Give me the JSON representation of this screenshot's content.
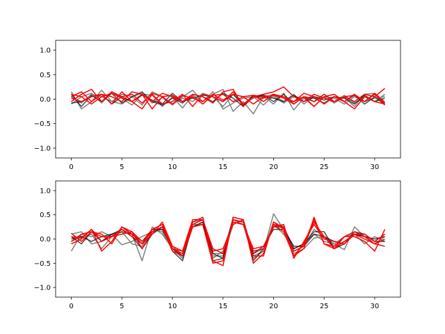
{
  "chart_data": [
    {
      "type": "line",
      "xlim": [
        -1.55,
        32.55
      ],
      "ylim": [
        -1.2,
        1.2
      ],
      "xticks": [
        0,
        5,
        10,
        15,
        20,
        25,
        30
      ],
      "yticks": [
        -1.0,
        -0.5,
        0.0,
        0.5,
        1.0
      ],
      "ytick_labels": [
        "−1.0",
        "−0.5",
        "0.0",
        "0.5",
        "1.0"
      ],
      "grid": false,
      "series": [
        {
          "color": "#808080",
          "values": [
            0.15,
            -0.2,
            -0.05,
            0.18,
            -0.05,
            -0.1,
            0.05,
            0.12,
            -0.08,
            0.03,
            -0.12,
            0.05,
            0.18,
            -0.05,
            0.1,
            0.2,
            -0.25,
            -0.05,
            -0.3,
            0.05,
            -0.1,
            0.12,
            -0.22,
            0.02,
            -0.15,
            0.05,
            -0.08,
            0.04,
            -0.15,
            0.1,
            0.12,
            -0.05
          ]
        },
        {
          "color": "#808080",
          "values": [
            -0.1,
            0.05,
            0.12,
            -0.08,
            0.15,
            0.02,
            -0.12,
            0.1,
            0.08,
            -0.15,
            0.05,
            -0.18,
            0.08,
            -0.05,
            0.15,
            -0.2,
            -0.08,
            0.02,
            0.05,
            -0.12,
            0.08,
            -0.05,
            0.1,
            -0.1,
            0.05,
            0.02,
            -0.05,
            0.08,
            -0.08,
            0.05,
            -0.05,
            0.1
          ]
        },
        {
          "color": "#808080",
          "values": [
            0.05,
            -0.08,
            0.1,
            0.05,
            -0.05,
            0.1,
            0.05,
            -0.12,
            0.15,
            0.05,
            -0.1,
            0.02,
            -0.05,
            0.12,
            0.05,
            -0.15,
            0.1,
            -0.1,
            0.02,
            0.08,
            0.05,
            -0.08,
            0.05,
            0.02,
            -0.05,
            0.05,
            0.02,
            -0.1,
            0.05,
            -0.05,
            0.02,
            0.05
          ]
        },
        {
          "color": "#000000",
          "opacity": 0.7,
          "values": [
            0.1,
            -0.15,
            0.08,
            -0.05,
            0.12,
            -0.08,
            0.05,
            0.15,
            -0.05,
            -0.12,
            0.02,
            -0.08,
            0.1,
            0.05,
            -0.05,
            0.12,
            0.02,
            -0.15,
            0.05,
            0.08,
            -0.05,
            0.1,
            -0.1,
            0.05,
            0.02,
            -0.08,
            0.05,
            -0.05,
            0.08,
            -0.1,
            0.05,
            -0.12
          ]
        },
        {
          "color": "#000000",
          "opacity": 0.7,
          "values": [
            -0.08,
            -0.05,
            0.05,
            0.1,
            -0.1,
            0.05,
            -0.05,
            0.08,
            -0.02,
            -0.1,
            0.12,
            -0.05,
            0.02,
            0.08,
            0.05,
            -0.05,
            0.1,
            -0.12,
            0.08,
            0.05,
            0.02,
            -0.05,
            0.08,
            -0.05,
            0.05,
            -0.02,
            0.05,
            0.02,
            -0.1,
            0.08,
            -0.05,
            0.02
          ]
        },
        {
          "color": "#ff0000",
          "values": [
            0.05,
            0.15,
            -0.05,
            0.1,
            0.05,
            -0.05,
            0.15,
            0.1,
            -0.05,
            0.12,
            0.05,
            -0.05,
            0.1,
            0.05,
            -0.08,
            0.15,
            0.2,
            -0.15,
            0.05,
            0.1,
            0.15,
            0.25,
            0.05,
            -0.05,
            0.1,
            0.02,
            -0.05,
            0.05,
            -0.05,
            0.1,
            0.05,
            0.22
          ]
        },
        {
          "color": "#ff0000",
          "values": [
            -0.05,
            0.1,
            0.2,
            -0.05,
            0.15,
            0.05,
            0.1,
            -0.08,
            0.12,
            0.05,
            -0.1,
            0.08,
            0.02,
            -0.05,
            0.1,
            -0.02,
            0.1,
            0.05,
            -0.1,
            0.05,
            0.08,
            0.02,
            -0.1,
            0.05,
            -0.05,
            0.1,
            -0.05,
            0.05,
            0.08,
            -0.05,
            0.12,
            -0.08
          ]
        },
        {
          "color": "#ff0000",
          "values": [
            0.02,
            -0.05,
            0.05,
            0.1,
            -0.1,
            0.15,
            -0.05,
            -0.2,
            0.1,
            -0.1,
            -0.05,
            0.1,
            -0.15,
            0.1,
            0.05,
            -0.05,
            0.15,
            -0.1,
            0.05,
            0.02,
            0.1,
            0.05,
            -0.05,
            0.12,
            0.05,
            -0.1,
            0.05,
            -0.05,
            0.1,
            -0.05,
            0.1,
            -0.1
          ]
        },
        {
          "color": "#ff0000",
          "values": [
            0.1,
            0.05,
            -0.1,
            0.05,
            0.12,
            0.02,
            -0.05,
            0.1,
            -0.2,
            0.05,
            0.08,
            -0.05,
            0.05,
            -0.1,
            0.08,
            0.1,
            -0.05,
            0.05,
            0.08,
            -0.05,
            0.1,
            0.02,
            -0.05,
            0.05,
            -0.15,
            0.05,
            0.1,
            -0.05,
            -0.2,
            0.05,
            -0.05,
            -0.1
          ]
        }
      ]
    },
    {
      "type": "line",
      "xlim": [
        -1.55,
        32.55
      ],
      "ylim": [
        -1.2,
        1.2
      ],
      "xticks": [
        0,
        5,
        10,
        15,
        20,
        25,
        30
      ],
      "yticks": [
        -1.0,
        -0.5,
        0.0,
        0.5,
        1.0
      ],
      "ytick_labels": [
        "−1.0",
        "−0.5",
        "0.0",
        "0.5",
        "1.0"
      ],
      "grid": false,
      "series": [
        {
          "color": "#808080",
          "values": [
            -0.25,
            0.1,
            0.05,
            0.15,
            0.05,
            0.2,
            0.1,
            -0.45,
            0.25,
            0.1,
            -0.2,
            -0.4,
            0.3,
            0.3,
            -0.4,
            -0.25,
            0.4,
            0.3,
            -0.4,
            -0.25,
            0.52,
            0.2,
            -0.3,
            -0.2,
            0.02,
            0.05,
            -0.1,
            -0.22,
            0.25,
            0.05,
            -0.05,
            0.1
          ]
        },
        {
          "color": "#808080",
          "values": [
            0.1,
            0.15,
            -0.1,
            -0.05,
            0.1,
            -0.12,
            -0.05,
            0.05,
            0.15,
            0.2,
            -0.15,
            -0.35,
            0.25,
            0.35,
            -0.35,
            -0.35,
            0.3,
            0.4,
            -0.3,
            -0.2,
            0.3,
            0.1,
            -0.2,
            -0.1,
            0.1,
            -0.05,
            -0.1,
            0.05,
            0.1,
            0.05,
            -0.1,
            0.05
          ]
        },
        {
          "color": "#808080",
          "values": [
            -0.05,
            0.05,
            0.1,
            -0.2,
            0.05,
            0.15,
            -0.1,
            -0.15,
            0.2,
            0.15,
            -0.2,
            -0.3,
            0.35,
            0.4,
            -0.3,
            -0.3,
            0.35,
            0.3,
            -0.35,
            -0.25,
            0.35,
            0.25,
            -0.25,
            -0.15,
            0.2,
            0.05,
            -0.15,
            -0.05,
            0.1,
            -0.1,
            0.05,
            -0.05
          ]
        },
        {
          "color": "#000000",
          "opacity": 0.7,
          "values": [
            0.05,
            -0.1,
            0.15,
            -0.05,
            0.1,
            0.2,
            0.05,
            -0.2,
            0.1,
            0.25,
            -0.25,
            -0.45,
            0.3,
            0.4,
            -0.45,
            -0.4,
            0.45,
            0.4,
            -0.45,
            -0.2,
            0.25,
            0.25,
            -0.2,
            -0.1,
            0.15,
            0.15,
            -0.2,
            -0.1,
            0.15,
            0.1,
            -0.05,
            -0.05
          ]
        },
        {
          "color": "#000000",
          "opacity": 0.7,
          "values": [
            0.0,
            0.05,
            -0.05,
            0.05,
            0.1,
            0.15,
            0.1,
            -0.1,
            0.2,
            0.2,
            -0.2,
            -0.35,
            0.25,
            0.35,
            -0.3,
            -0.4,
            0.4,
            0.35,
            -0.3,
            -0.15,
            0.2,
            0.2,
            -0.15,
            -0.15,
            0.1,
            0.05,
            -0.05,
            -0.1,
            0.1,
            0.05,
            0.0,
            0.05
          ]
        },
        {
          "color": "#ff0000",
          "values": [
            0.05,
            0.02,
            0.2,
            -0.25,
            -0.05,
            0.25,
            0.15,
            -0.2,
            0.15,
            0.25,
            -0.2,
            -0.3,
            0.35,
            0.45,
            -0.45,
            -0.55,
            0.45,
            0.4,
            -0.5,
            -0.3,
            0.3,
            0.25,
            -0.35,
            -0.2,
            0.45,
            -0.1,
            -0.15,
            0.05,
            0.05,
            -0.05,
            -0.25,
            0.2
          ]
        },
        {
          "color": "#ff0000",
          "values": [
            0.12,
            -0.05,
            0.15,
            0.1,
            -0.1,
            0.25,
            0.1,
            -0.05,
            0.2,
            0.3,
            -0.2,
            -0.25,
            0.4,
            0.4,
            -0.25,
            -0.2,
            0.3,
            0.4,
            -0.35,
            -0.35,
            0.35,
            0.2,
            -0.25,
            -0.15,
            0.35,
            0.05,
            -0.2,
            0.05,
            0.15,
            0.05,
            -0.1,
            -0.15
          ]
        },
        {
          "color": "#ff0000",
          "values": [
            -0.05,
            0.1,
            0.15,
            0.05,
            0.05,
            0.2,
            0.05,
            -0.1,
            0.1,
            0.35,
            -0.15,
            -0.25,
            0.3,
            0.4,
            -0.2,
            -0.3,
            0.35,
            0.3,
            -0.2,
            -0.15,
            0.25,
            0.3,
            -0.4,
            -0.05,
            0.3,
            0.0,
            -0.05,
            -0.1,
            0.1,
            0.1,
            -0.05,
            0.1
          ]
        },
        {
          "color": "#ff0000",
          "values": [
            -0.1,
            0.0,
            0.2,
            -0.05,
            0.05,
            0.1,
            0.15,
            -0.05,
            0.15,
            0.25,
            -0.25,
            -0.35,
            0.25,
            0.3,
            -0.5,
            -0.45,
            0.4,
            0.35,
            -0.25,
            -0.2,
            0.3,
            0.15,
            -0.35,
            -0.1,
            0.4,
            -0.1,
            -0.2,
            -0.05,
            0.1,
            0.0,
            -0.1,
            0.0
          ]
        }
      ]
    }
  ]
}
